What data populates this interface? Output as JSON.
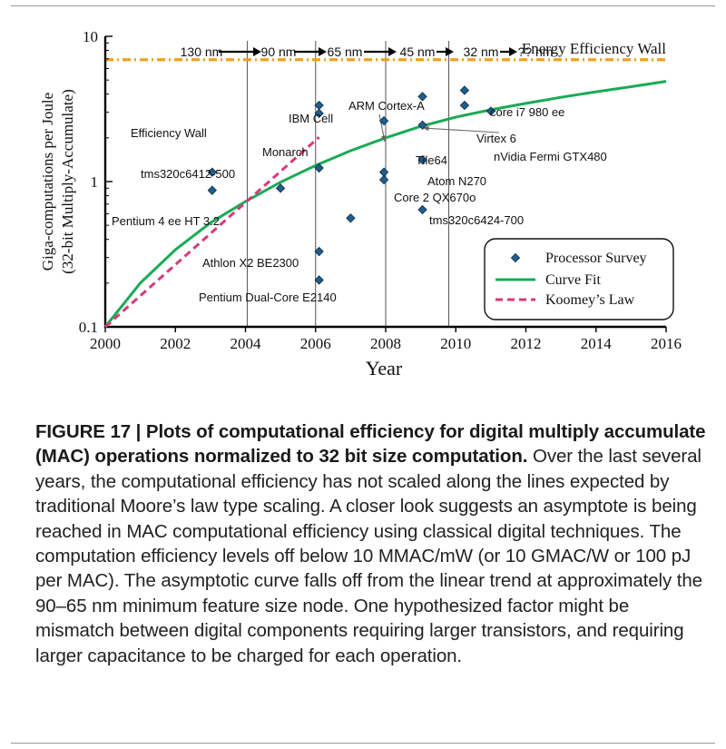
{
  "chart_data": {
    "type": "scatter",
    "xlabel": "Year",
    "ylabel_line1": "Giga-computations per Joule",
    "ylabel_line2": "(32-bit Multiply-Accumulate)",
    "xlim": [
      2000,
      2016
    ],
    "ylim": [
      0.1,
      10
    ],
    "y_scale": "log",
    "x_ticks": [
      "2000",
      "2002",
      "2004",
      "2006",
      "2008",
      "2010",
      "2012",
      "2014",
      "2016"
    ],
    "y_ticks": [
      {
        "value": 0.1,
        "label": "0.1"
      },
      {
        "value": 1,
        "label": "1"
      },
      {
        "value": 10,
        "label": "10"
      }
    ],
    "node_labels": [
      "130 nm",
      "90 nm",
      "65 nm",
      "45 nm",
      "32 nm",
      "?? nm"
    ],
    "node_dividers": [
      2004.05,
      2006.0,
      2008.0,
      2009.8
    ],
    "energy_wall": {
      "label": "Energy Efficiency Wall",
      "value": 6.9,
      "color": "#f0a020"
    },
    "efficiency_wall_label": "Efficiency Wall",
    "points": [
      {
        "x": 2003.05,
        "y": 1.16,
        "label": "tms320c6412-500"
      },
      {
        "x": 2003.05,
        "y": 0.87,
        "label": "Pentium 4 ee HT 3.2"
      },
      {
        "x": 2005.0,
        "y": 0.9
      },
      {
        "x": 2006.1,
        "y": 3.35,
        "label": "IBM Cell"
      },
      {
        "x": 2006.1,
        "y": 2.95
      },
      {
        "x": 2006.1,
        "y": 1.24,
        "label": "Monarch"
      },
      {
        "x": 2006.1,
        "y": 0.33,
        "label": "Athlon X2 BE2300"
      },
      {
        "x": 2006.1,
        "y": 0.21,
        "label": "Pentium Dual-Core E2140"
      },
      {
        "x": 2007.0,
        "y": 0.56
      },
      {
        "x": 2007.95,
        "y": 2.62,
        "label": "ARM Cortex-A"
      },
      {
        "x": 2007.95,
        "y": 1.16
      },
      {
        "x": 2007.95,
        "y": 1.03,
        "label": "Core 2 QX670o"
      },
      {
        "x": 2009.05,
        "y": 3.85
      },
      {
        "x": 2009.05,
        "y": 2.45,
        "label": "Tile64"
      },
      {
        "x": 2009.05,
        "y": 1.41,
        "label": "Atom N270"
      },
      {
        "x": 2009.05,
        "y": 0.64,
        "label": "tms320c6424-700"
      },
      {
        "x": 2010.25,
        "y": 4.25,
        "label": "core i7 980 ee"
      },
      {
        "x": 2010.25,
        "y": 3.35
      },
      {
        "x": 2011.0,
        "y": 3.05,
        "label": "nVidia Fermi GTX480"
      }
    ],
    "extra_labels": [
      "Virtex 6"
    ],
    "curve_fit": [
      {
        "x": 2000,
        "y": 0.1
      },
      {
        "x": 2001,
        "y": 0.2
      },
      {
        "x": 2002,
        "y": 0.34
      },
      {
        "x": 2003,
        "y": 0.52
      },
      {
        "x": 2004,
        "y": 0.73
      },
      {
        "x": 2005,
        "y": 0.99
      },
      {
        "x": 2006,
        "y": 1.29
      },
      {
        "x": 2007,
        "y": 1.63
      },
      {
        "x": 2008,
        "y": 2.0
      },
      {
        "x": 2009,
        "y": 2.4
      },
      {
        "x": 2010,
        "y": 2.78
      },
      {
        "x": 2011,
        "y": 3.12
      },
      {
        "x": 2012,
        "y": 3.45
      },
      {
        "x": 2013,
        "y": 3.8
      },
      {
        "x": 2014,
        "y": 4.15
      },
      {
        "x": 2015,
        "y": 4.5
      },
      {
        "x": 2016,
        "y": 4.9
      }
    ],
    "koomey": [
      {
        "x": 2000,
        "y": 0.1
      },
      {
        "x": 2006.1,
        "y": 2.02
      }
    ],
    "legend": [
      {
        "label": "Processor Survey",
        "kind": "marker"
      },
      {
        "label": "Curve Fit",
        "kind": "line",
        "color": "#1aaa55"
      },
      {
        "label": "Koomey’s Law",
        "kind": "dash",
        "color": "#d63a78"
      }
    ],
    "legend_position": "bottom-right",
    "marker_color": "#1d5f8e"
  },
  "caption": {
    "title": "FIGURE 17 | Plots of computational efficiency for digital multiply accumulate (MAC) operations normalized to 32 bit size computation.",
    "body": "Over the last several years, the computational efficiency has not scaled along the lines expected by traditional Moore’s law type scaling. A closer look suggests an asymptote is being reached in MAC computational efficiency using classical digital techniques. The computation efficiency levels off below 10 MMAC/mW (or 10 GMAC/W or 100 pJ per MAC). The asymptotic curve falls off from the linear trend at approximately the 90–65 nm minimum feature size node. One hypothesized factor might be mismatch between digital components requiring larger transistors, and requiring larger capacitance to be charged for each operation."
  }
}
